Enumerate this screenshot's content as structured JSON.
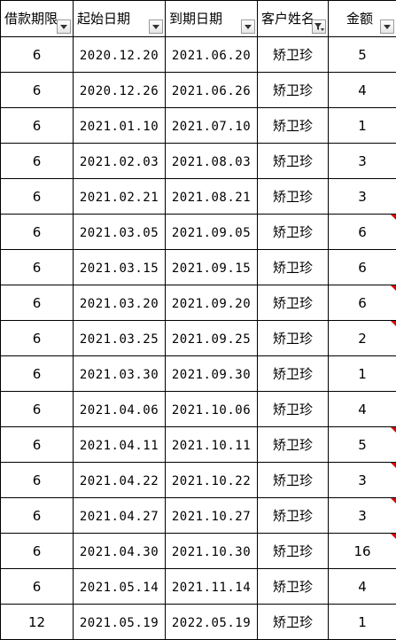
{
  "headers": [
    {
      "label": "借款期限",
      "filter": "arrow"
    },
    {
      "label": "起始日期",
      "filter": "arrow"
    },
    {
      "label": "到期日期",
      "filter": "arrow"
    },
    {
      "label": "客户姓名",
      "filter": "funnel-active"
    },
    {
      "label": "金额",
      "filter": "arrow"
    }
  ],
  "rows": [
    {
      "term": "6",
      "start": "2020.12.20",
      "end": "2021.06.20",
      "name": "矫卫珍",
      "amount": "5",
      "note": false
    },
    {
      "term": "6",
      "start": "2020.12.26",
      "end": "2021.06.26",
      "name": "矫卫珍",
      "amount": "4",
      "note": false
    },
    {
      "term": "6",
      "start": "2021.01.10",
      "end": "2021.07.10",
      "name": "矫卫珍",
      "amount": "1",
      "note": false
    },
    {
      "term": "6",
      "start": "2021.02.03",
      "end": "2021.08.03",
      "name": "矫卫珍",
      "amount": "3",
      "note": false
    },
    {
      "term": "6",
      "start": "2021.02.21",
      "end": "2021.08.21",
      "name": "矫卫珍",
      "amount": "3",
      "note": false
    },
    {
      "term": "6",
      "start": "2021.03.05",
      "end": "2021.09.05",
      "name": "矫卫珍",
      "amount": "6",
      "note": true
    },
    {
      "term": "6",
      "start": "2021.03.15",
      "end": "2021.09.15",
      "name": "矫卫珍",
      "amount": "6",
      "note": false
    },
    {
      "term": "6",
      "start": "2021.03.20",
      "end": "2021.09.20",
      "name": "矫卫珍",
      "amount": "6",
      "note": true
    },
    {
      "term": "6",
      "start": "2021.03.25",
      "end": "2021.09.25",
      "name": "矫卫珍",
      "amount": "2",
      "note": true
    },
    {
      "term": "6",
      "start": "2021.03.30",
      "end": "2021.09.30",
      "name": "矫卫珍",
      "amount": "1",
      "note": false
    },
    {
      "term": "6",
      "start": "2021.04.06",
      "end": "2021.10.06",
      "name": "矫卫珍",
      "amount": "4",
      "note": false
    },
    {
      "term": "6",
      "start": "2021.04.11",
      "end": "2021.10.11",
      "name": "矫卫珍",
      "amount": "5",
      "note": true
    },
    {
      "term": "6",
      "start": "2021.04.22",
      "end": "2021.10.22",
      "name": "矫卫珍",
      "amount": "3",
      "note": true
    },
    {
      "term": "6",
      "start": "2021.04.27",
      "end": "2021.10.27",
      "name": "矫卫珍",
      "amount": "3",
      "note": true
    },
    {
      "term": "6",
      "start": "2021.04.30",
      "end": "2021.10.30",
      "name": "矫卫珍",
      "amount": "16",
      "note": true
    },
    {
      "term": "6",
      "start": "2021.05.14",
      "end": "2021.11.14",
      "name": "矫卫珍",
      "amount": "4",
      "note": false
    },
    {
      "term": "12",
      "start": "2021.05.19",
      "end": "2022.05.19",
      "name": "矫卫珍",
      "amount": "1",
      "note": false
    }
  ],
  "colors": {
    "grid": "#000000",
    "comment_marker": "#e00000"
  }
}
